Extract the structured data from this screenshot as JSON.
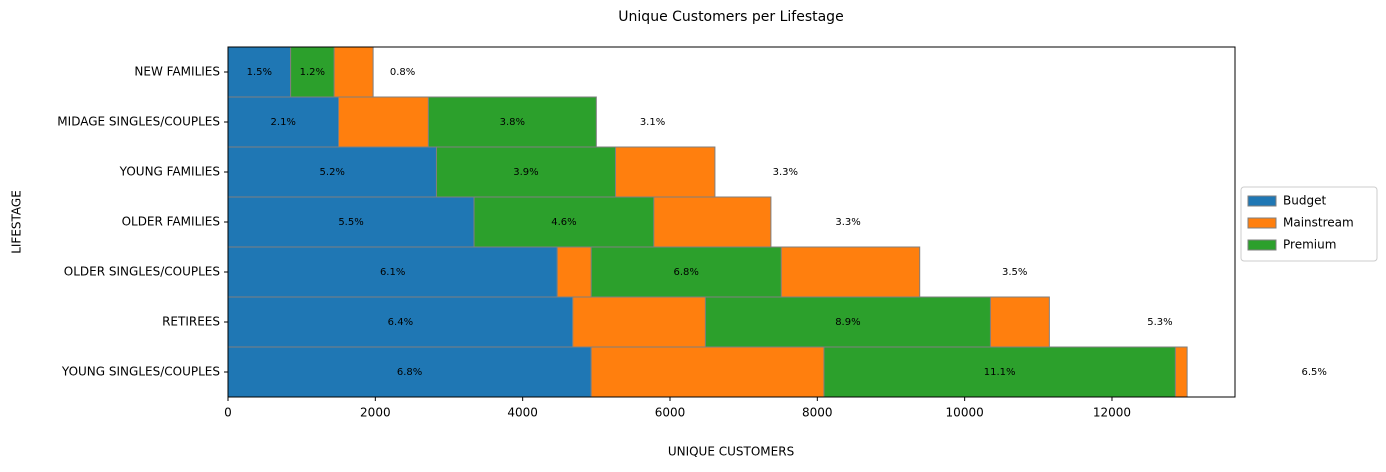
{
  "chart_data": {
    "type": "bar",
    "orientation": "horizontal",
    "title": "Unique Customers per Lifestage",
    "x_label": "UNIQUE CUSTOMERS",
    "y_label": "LIFESTAGE",
    "categories": [
      "NEW FAMILIES",
      "MIDAGE SINGLES/COUPLES",
      "YOUNG FAMILIES",
      "OLDER FAMILIES",
      "OLDER SINGLES/COUPLES",
      "RETIREES",
      "YOUNG SINGLES/COUPLES"
    ],
    "series": [
      {
        "name": "Budget",
        "color": "#1f77b4",
        "left": [
          0,
          0,
          0,
          0,
          0,
          0,
          0
        ],
        "values": [
          850,
          1500,
          2830,
          3340,
          4470,
          4680,
          4930
        ]
      },
      {
        "name": "Mainstream",
        "color": "#ff7f0e",
        "left": [
          850,
          1500,
          2830,
          3340,
          4470,
          4680,
          4930
        ],
        "values": [
          1120,
          3480,
          3780,
          4030,
          4920,
          6470,
          8090
        ]
      },
      {
        "name": "Premium",
        "color": "#2ca02c",
        "left": [
          850,
          2720,
          2830,
          3340,
          4930,
          6480,
          8090
        ],
        "values": [
          590,
          2280,
          2430,
          2440,
          2580,
          3870,
          4770
        ]
      }
    ],
    "annotations": [
      [
        "1.5%",
        "1.2%",
        "0.8%"
      ],
      [
        "2.1%",
        "3.8%",
        "3.1%"
      ],
      [
        "5.2%",
        "3.9%",
        "3.3%"
      ],
      [
        "5.5%",
        "4.6%",
        "3.3%"
      ],
      [
        "6.1%",
        "6.8%",
        "3.5%"
      ],
      [
        "6.4%",
        "8.9%",
        "5.3%"
      ],
      [
        "6.8%",
        "11.1%",
        "6.5%"
      ]
    ],
    "xlim": [
      0,
      13670
    ],
    "xticks": [
      0,
      2000,
      4000,
      6000,
      8000,
      10000,
      12000
    ],
    "legend": "right"
  }
}
